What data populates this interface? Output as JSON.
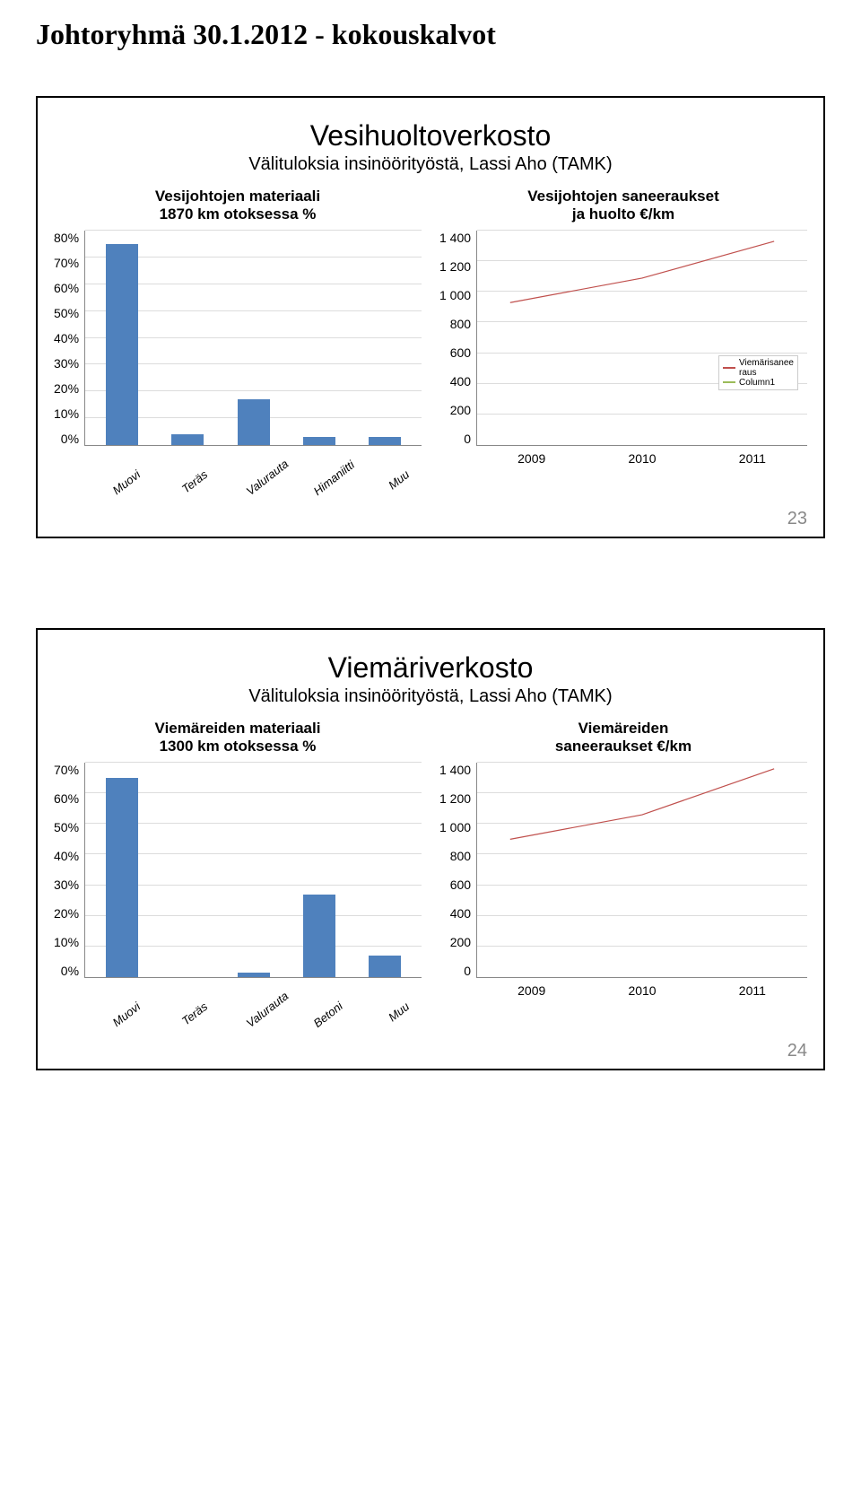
{
  "doc_title": "Johtoryhmä 30.1.2012 - kokouskalvot",
  "slide1": {
    "title": "Vesihuoltoverkosto",
    "subtitle": "Välituloksia insinöörityöstä, Lassi Aho (TAMK)",
    "page_num": "23",
    "bar_chart": {
      "title": "Vesijohtojen materiaali\n1870 km otoksessa %",
      "categories": [
        "Muovi",
        "Teräs",
        "Valurauta",
        "Himaniitti",
        "Muu"
      ],
      "values": [
        75,
        4,
        17,
        3,
        3
      ],
      "ymax": 80,
      "ystep": 10,
      "ylabels": [
        "80%",
        "70%",
        "60%",
        "50%",
        "40%",
        "30%",
        "20%",
        "10%",
        "0%"
      ],
      "bar_color": "#4f81bd",
      "grid_color": "#dcdcdc"
    },
    "line_chart": {
      "title": "Vesijohtojen saneeraukset\nja huolto €/km",
      "ylabels": [
        "1 400",
        "1 200",
        "1 000",
        "800",
        "600",
        "400",
        "200",
        "0"
      ],
      "ymax": 1400,
      "ystep": 200,
      "x_categories": [
        "2009",
        "2010",
        "2011"
      ],
      "series": [
        {
          "name": "Viemärisaneeraus",
          "color": "#c0504d",
          "values": [
            930,
            1090,
            1330
          ]
        },
        {
          "name": "Column1",
          "color": "#9bbb59",
          "values": [
            null,
            null,
            null
          ]
        }
      ],
      "legend_pos": {
        "right": 10,
        "top_pct": 58
      }
    }
  },
  "slide2": {
    "title": "Viemäriverkosto",
    "subtitle": "Välituloksia insinöörityöstä, Lassi Aho (TAMK)",
    "page_num": "24",
    "bar_chart": {
      "title": "Viemäreiden materiaali\n1300 km otoksessa %",
      "categories": [
        "Muovi",
        "Teräs",
        "Valurauta",
        "Betoni",
        "Muu"
      ],
      "values": [
        65,
        0,
        1.5,
        27,
        7
      ],
      "ymax": 70,
      "ystep": 10,
      "ylabels": [
        "70%",
        "60%",
        "50%",
        "40%",
        "30%",
        "20%",
        "10%",
        "0%"
      ],
      "bar_color": "#4f81bd",
      "grid_color": "#dcdcdc"
    },
    "line_chart": {
      "title": "Viemäreiden\nsaneeraukset €/km",
      "ylabels": [
        "1 400",
        "1 200",
        "1 000",
        "800",
        "600",
        "400",
        "200",
        "0"
      ],
      "ymax": 1400,
      "ystep": 200,
      "x_categories": [
        "2009",
        "2010",
        "2011"
      ],
      "series": [
        {
          "name": "",
          "color": "#c0504d",
          "values": [
            900,
            1060,
            1360
          ]
        }
      ],
      "legend_pos": null
    }
  }
}
